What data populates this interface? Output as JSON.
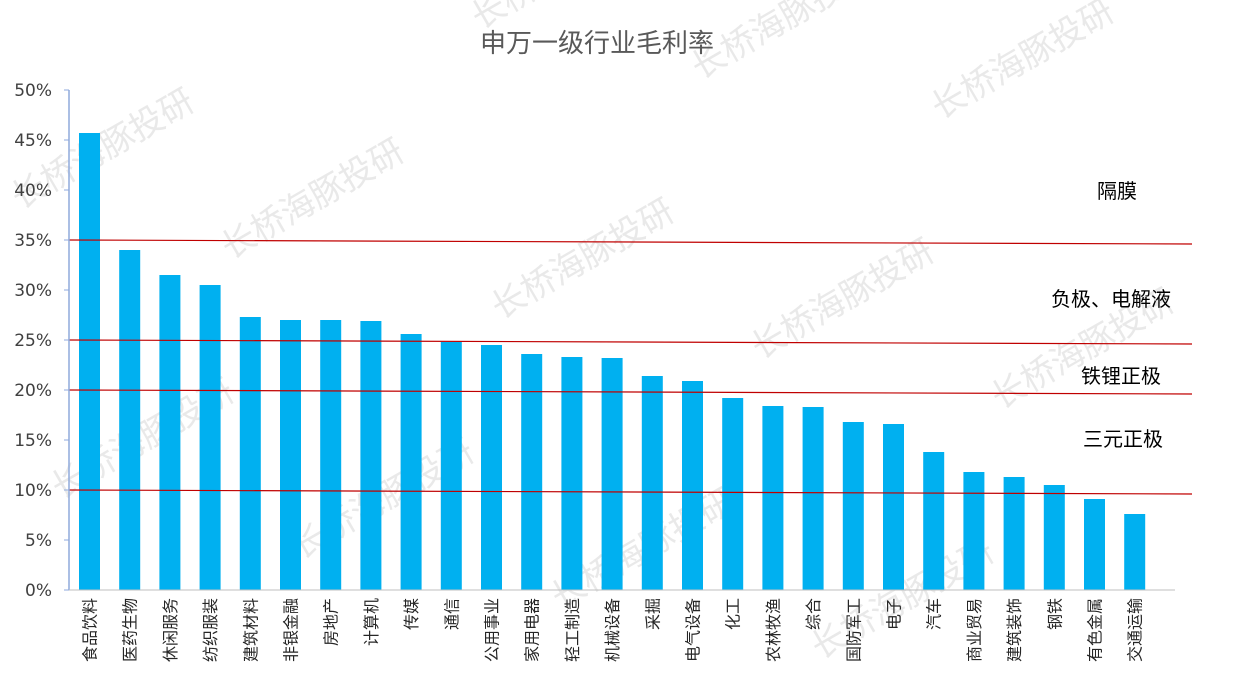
{
  "chart_data": {
    "type": "bar",
    "title": "申万一级行业毛利率",
    "ylim": [
      0,
      50
    ],
    "yticks": [
      "0%",
      "5%",
      "10%",
      "15%",
      "20%",
      "25%",
      "30%",
      "35%",
      "40%",
      "45%",
      "50%"
    ],
    "categories": [
      "食品饮料",
      "医药生物",
      "休闲服务",
      "纺织服装",
      "建筑材料",
      "非银金融",
      "房地产",
      "计算机",
      "传媒",
      "通信",
      "公用事业",
      "家用电器",
      "轻工制造",
      "机械设备",
      "采掘",
      "电气设备",
      "化工",
      "农林牧渔",
      "综合",
      "国防军工",
      "电子",
      "汽车",
      "商业贸易",
      "建筑装饰",
      "钢铁",
      "有色金属",
      "交通运输"
    ],
    "values": [
      45.7,
      34.0,
      31.5,
      30.5,
      27.3,
      27.0,
      27.0,
      26.9,
      25.6,
      24.8,
      24.5,
      23.6,
      23.3,
      23.2,
      21.4,
      20.9,
      19.2,
      18.4,
      18.3,
      16.8,
      16.6,
      13.8,
      11.8,
      11.3,
      10.5,
      9.1,
      7.6
    ],
    "bar_color": "#00b0f0",
    "reference_lines": [
      {
        "value": 35,
        "color": "#c00000"
      },
      {
        "value": 25,
        "color": "#c00000"
      },
      {
        "value": 20,
        "color": "#c00000"
      },
      {
        "value": 10,
        "color": "#c00000"
      }
    ],
    "annotations": [
      "隔膜",
      "负极、电解液",
      "铁锂正极",
      "三元正极"
    ]
  },
  "watermark": "长桥海豚投研"
}
